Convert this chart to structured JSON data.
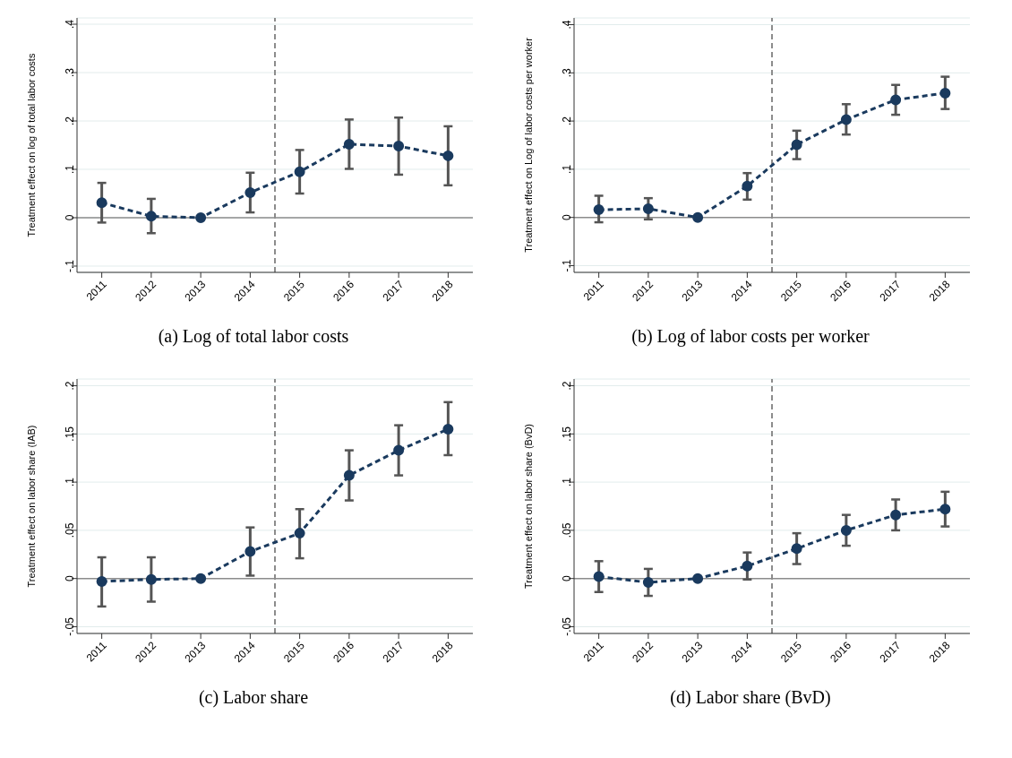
{
  "chart_data": [
    {
      "type": "line",
      "title": "(a) Log of total labor costs",
      "ylabel": "Treatment effect on log of total labor costs",
      "x": [
        2011,
        2012,
        2013,
        2014,
        2015,
        2016,
        2017,
        2018
      ],
      "xlim": [
        2010.5,
        2018.5
      ],
      "xticks": [
        2011,
        2012,
        2013,
        2014,
        2015,
        2016,
        2017,
        2018
      ],
      "ylim": [
        -0.113,
        0.413
      ],
      "yticks": [
        {
          "value": -0.1,
          "label": "-.1"
        },
        {
          "value": 0,
          "label": "0"
        },
        {
          "value": 0.1,
          "label": ".1"
        },
        {
          "value": 0.2,
          "label": ".2"
        },
        {
          "value": 0.3,
          "label": ".3"
        },
        {
          "value": 0.4,
          "label": ".4"
        }
      ],
      "grid": "y",
      "marker": "circle",
      "line_style": "dashed",
      "series": [
        {
          "color": "#1a3a5e",
          "values": [
            0.031,
            0.003,
            0,
            0.052,
            0.095,
            0.152,
            0.148,
            0.128
          ],
          "errors": [
            [
              -0.01,
              0.072
            ],
            [
              -0.032,
              0.039
            ],
            null,
            [
              0.011,
              0.093
            ],
            [
              0.05,
              0.14
            ],
            [
              0.101,
              0.203
            ],
            [
              0.089,
              0.207
            ],
            [
              0.067,
              0.189
            ]
          ]
        }
      ],
      "ref_lines": [
        {
          "axis": "x",
          "value": 2014.5,
          "color": "#8c8c8c",
          "line_style": "dashed"
        },
        {
          "axis": "y",
          "value": 0,
          "color": "#8c8c8c",
          "line_style": "solid"
        }
      ]
    },
    {
      "type": "line",
      "title": "(b) Log of labor costs per worker",
      "ylabel": "Treatment effect on Log of labor costs per worker",
      "x": [
        2011,
        2012,
        2013,
        2014,
        2015,
        2016,
        2017,
        2018
      ],
      "xlim": [
        2010.5,
        2018.5
      ],
      "xticks": [
        2011,
        2012,
        2013,
        2014,
        2015,
        2016,
        2017,
        2018
      ],
      "ylim": [
        -0.114,
        0.414
      ],
      "yticks": [
        {
          "value": -0.1,
          "label": "-.1"
        },
        {
          "value": 0,
          "label": "0"
        },
        {
          "value": 0.1,
          "label": ".1"
        },
        {
          "value": 0.2,
          "label": ".2"
        },
        {
          "value": 0.3,
          "label": ".3"
        },
        {
          "value": 0.4,
          "label": ".4"
        }
      ],
      "grid": "y",
      "marker": "circle",
      "line_style": "dashed",
      "series": [
        {
          "color": "#1a3a5e",
          "values": [
            0.016,
            0.018,
            0,
            0.065,
            0.151,
            0.203,
            0.244,
            0.258
          ],
          "errors": [
            [
              -0.01,
              0.045
            ],
            [
              -0.004,
              0.04
            ],
            null,
            [
              0.037,
              0.092
            ],
            [
              0.121,
              0.18
            ],
            [
              0.172,
              0.235
            ],
            [
              0.213,
              0.275
            ],
            [
              0.225,
              0.292
            ]
          ]
        }
      ],
      "ref_lines": [
        {
          "axis": "x",
          "value": 2014.5,
          "color": "#8c8c8c",
          "line_style": "dashed"
        },
        {
          "axis": "y",
          "value": 0,
          "color": "#8c8c8c",
          "line_style": "solid"
        }
      ]
    },
    {
      "type": "line",
      "title": "(c) Labor share",
      "ylabel": "Treatment effect on labor share (IAB)",
      "x": [
        2011,
        2012,
        2013,
        2014,
        2015,
        2016,
        2017,
        2018
      ],
      "xlim": [
        2010.5,
        2018.5
      ],
      "xticks": [
        2011,
        2012,
        2013,
        2014,
        2015,
        2016,
        2017,
        2018
      ],
      "ylim": [
        -0.057,
        0.207
      ],
      "yticks": [
        {
          "value": -0.05,
          "label": "-.05"
        },
        {
          "value": 0,
          "label": "0"
        },
        {
          "value": 0.05,
          "label": ".05"
        },
        {
          "value": 0.1,
          "label": ".1"
        },
        {
          "value": 0.15,
          "label": ".15"
        },
        {
          "value": 0.2,
          "label": ".2"
        }
      ],
      "grid": "y",
      "marker": "circle",
      "line_style": "dashed",
      "series": [
        {
          "color": "#1a3a5e",
          "values": [
            -0.003,
            -0.001,
            0,
            0.028,
            0.047,
            0.107,
            0.133,
            0.155
          ],
          "errors": [
            [
              -0.029,
              0.022
            ],
            [
              -0.024,
              0.022
            ],
            null,
            [
              0.003,
              0.053
            ],
            [
              0.021,
              0.072
            ],
            [
              0.081,
              0.133
            ],
            [
              0.107,
              0.159
            ],
            [
              0.128,
              0.183
            ]
          ]
        }
      ],
      "ref_lines": [
        {
          "axis": "x",
          "value": 2014.5,
          "color": "#8c8c8c",
          "line_style": "dashed"
        },
        {
          "axis": "y",
          "value": 0,
          "color": "#8c8c8c",
          "line_style": "solid"
        }
      ]
    },
    {
      "type": "line",
      "title": "(d) Labor share (BvD)",
      "ylabel": "Treatment effect on labor share (BvD)",
      "x": [
        2011,
        2012,
        2013,
        2014,
        2015,
        2016,
        2017,
        2018
      ],
      "xlim": [
        2010.5,
        2018.5
      ],
      "xticks": [
        2011,
        2012,
        2013,
        2014,
        2015,
        2016,
        2017,
        2018
      ],
      "ylim": [
        -0.057,
        0.207
      ],
      "yticks": [
        {
          "value": -0.05,
          "label": "-.05"
        },
        {
          "value": 0,
          "label": "0"
        },
        {
          "value": 0.05,
          "label": ".05"
        },
        {
          "value": 0.1,
          "label": ".1"
        },
        {
          "value": 0.15,
          "label": ".15"
        },
        {
          "value": 0.2,
          "label": ".2"
        }
      ],
      "grid": "y",
      "marker": "circle",
      "line_style": "dashed",
      "series": [
        {
          "color": "#1a3a5e",
          "values": [
            0.002,
            -0.004,
            0,
            0.013,
            0.031,
            0.05,
            0.066,
            0.072
          ],
          "errors": [
            [
              -0.014,
              0.018
            ],
            [
              -0.018,
              0.01
            ],
            null,
            [
              -0.001,
              0.027
            ],
            [
              0.015,
              0.047
            ],
            [
              0.034,
              0.066
            ],
            [
              0.05,
              0.082
            ],
            [
              0.054,
              0.09
            ]
          ]
        }
      ],
      "ref_lines": [
        {
          "axis": "x",
          "value": 2014.5,
          "color": "#8c8c8c",
          "line_style": "dashed"
        },
        {
          "axis": "y",
          "value": 0,
          "color": "#8c8c8c",
          "line_style": "solid"
        }
      ]
    }
  ]
}
